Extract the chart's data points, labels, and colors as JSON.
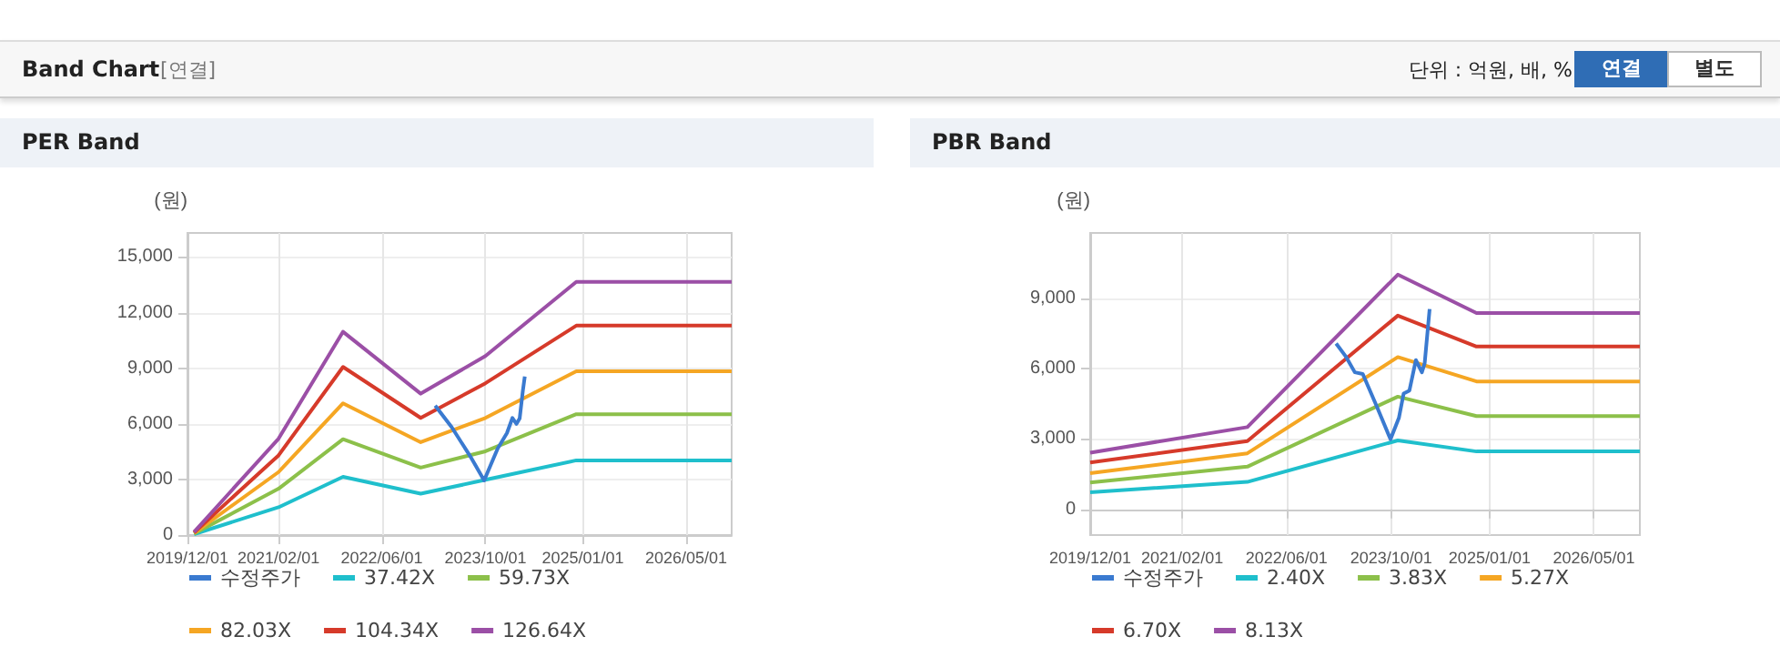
{
  "chart_data": [
    {
      "type": "other",
      "title": "Band Chart",
      "subtitle": "[연결]",
      "annotations": [
        "단위 : 억원, 배, %",
        "연결",
        "별도"
      ]
    },
    {
      "type": "line",
      "title": "PER Band",
      "ylabel": "(원)",
      "x": [
        "2020-01-01",
        "2021-02-01",
        "2021-12-01",
        "2022-12-01",
        "2023-10-01",
        "2024-12-01",
        "2026-12-01"
      ],
      "series": [
        {
          "name": "수정주가",
          "color": "#3a7ad0",
          "x": [
            "2023-02-07",
            "2023-04-25",
            "2023-07-25",
            "2023-09-25",
            "2023-11-28",
            "2024-01-10",
            "2024-02-05",
            "2024-02-24",
            "2024-03-10",
            "2024-03-25",
            "2024-04-03"
          ],
          "values": [
            6980,
            5830,
            4190,
            2950,
            4680,
            5500,
            6320,
            6000,
            6300,
            7790,
            8550
          ]
        },
        {
          "name": "37.42X",
          "color": "#1fbfcc",
          "values": [
            50,
            1500,
            3140,
            2230,
            2980,
            4030,
            4030
          ]
        },
        {
          "name": "59.73X",
          "color": "#8cc04a",
          "values": [
            80,
            2500,
            5170,
            3640,
            4520,
            6520,
            6520
          ]
        },
        {
          "name": "82.03X",
          "color": "#f5a623",
          "values": [
            110,
            3400,
            7110,
            5010,
            6320,
            8840,
            8840
          ]
        },
        {
          "name": "104.34X",
          "color": "#d63a2a",
          "values": [
            140,
            4300,
            9070,
            6320,
            8190,
            11300,
            11300
          ]
        },
        {
          "name": "126.64X",
          "color": "#9b4fa6",
          "values": [
            170,
            5200,
            10970,
            7630,
            9660,
            13660,
            13660
          ]
        }
      ],
      "xlim": [
        "2019-12-01",
        "2026-12-01"
      ],
      "xticks": [
        {
          "value": "2019-12-01",
          "label": "2019/12/01"
        },
        {
          "value": "2021-02-01",
          "label": "2021/02/01"
        },
        {
          "value": "2022-06-01",
          "label": "2022/06/01"
        },
        {
          "value": "2023-10-01",
          "label": "2023/10/01"
        },
        {
          "value": "2025-01-01",
          "label": "2025/01/01"
        },
        {
          "value": "2026-05-01",
          "label": "2026/05/01"
        }
      ],
      "ylim": [
        0,
        16300
      ],
      "yticks": [
        {
          "value": 0,
          "label": "0"
        },
        {
          "value": 3000,
          "label": "3,000"
        },
        {
          "value": 6000,
          "label": "6,000"
        },
        {
          "value": 9000,
          "label": "9,000"
        },
        {
          "value": 12000,
          "label": "12,000"
        },
        {
          "value": 15000,
          "label": "15,000"
        }
      ],
      "grid": true,
      "legend": "bottom",
      "marker": "none"
    },
    {
      "type": "line",
      "title": "PBR Band",
      "ylabel": "(원)",
      "x": [
        "2019-12-01",
        "2021-12-01",
        "2023-11-01",
        "2024-11-01",
        "2026-12-01"
      ],
      "series": [
        {
          "name": "수정주가",
          "color": "#3a7ad0",
          "x": [
            "2023-01-18",
            "2023-03-06",
            "2023-04-15",
            "2023-05-22",
            "2023-07-25",
            "2023-09-28",
            "2023-11-06",
            "2023-11-28",
            "2023-12-25",
            "2024-01-24",
            "2024-02-21",
            "2024-03-05",
            "2024-03-28"
          ],
          "values": [
            7080,
            6500,
            5850,
            5780,
            4420,
            2990,
            3900,
            4940,
            5070,
            6370,
            5850,
            6240,
            8550
          ]
        },
        {
          "name": "2.40X",
          "color": "#1fbfcc",
          "values": [
            730,
            1170,
            2940,
            2470,
            2470
          ]
        },
        {
          "name": "3.83X",
          "color": "#8cc04a",
          "values": [
            1140,
            1820,
            4810,
            3980,
            3980
          ]
        },
        {
          "name": "5.27X",
          "color": "#f5a623",
          "values": [
            1540,
            2390,
            6500,
            5460,
            5460
          ]
        },
        {
          "name": "6.70X",
          "color": "#d63a2a",
          "values": [
            2000,
            2910,
            8270,
            6950,
            6950
          ]
        },
        {
          "name": "8.13X",
          "color": "#9b4fa6",
          "values": [
            2420,
            3510,
            10020,
            8380,
            8380
          ]
        }
      ],
      "xlim": [
        "2019-12-01",
        "2026-12-01"
      ],
      "xticks": [
        {
          "value": "2019-12-01",
          "label": "2019/12/01"
        },
        {
          "value": "2021-02-01",
          "label": "2021/02/01"
        },
        {
          "value": "2022-06-01",
          "label": "2022/06/01"
        },
        {
          "value": "2023-10-01",
          "label": "2023/10/01"
        },
        {
          "value": "2025-01-01",
          "label": "2025/01/01"
        },
        {
          "value": "2026-05-01",
          "label": "2026/05/01"
        }
      ],
      "ylim": [
        -1100,
        11800
      ],
      "yticks": [
        {
          "value": 0,
          "label": "0"
        },
        {
          "value": 3000,
          "label": "3,000"
        },
        {
          "value": 6000,
          "label": "6,000"
        },
        {
          "value": 9000,
          "label": "9,000"
        }
      ],
      "grid": true,
      "legend": "bottom",
      "marker": "none"
    }
  ]
}
